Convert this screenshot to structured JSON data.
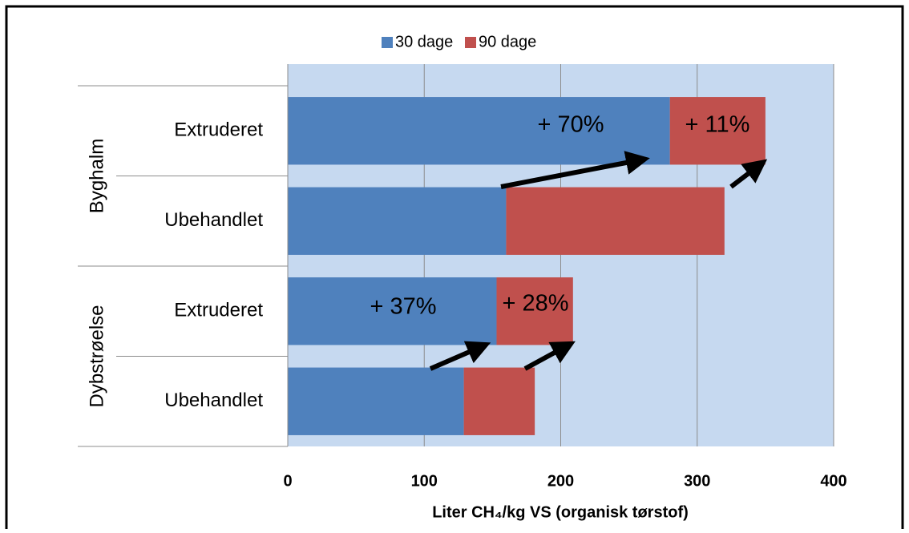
{
  "chart_data": {
    "type": "stacked_barh",
    "groups": [
      {
        "name": "Byghalm",
        "categories": [
          "Extruderet",
          "Ubehandlet"
        ]
      },
      {
        "name": "Dybstrøelse",
        "categories": [
          "Extruderet",
          "Ubehandlet"
        ]
      }
    ],
    "series": [
      {
        "name": "30 dage",
        "color": "#4f81bd",
        "values": [
          280,
          160,
          153,
          129
        ]
      },
      {
        "name": "90 dage",
        "color": "#c0504d",
        "values": [
          70,
          160,
          56,
          52
        ]
      }
    ],
    "xlim": [
      0,
      400
    ],
    "xticks": [
      0,
      100,
      200,
      300,
      400
    ],
    "xlabel": "Liter CH₄/kg VS (organisk tørstof)",
    "grid": true,
    "legend": "top",
    "annotations": [
      "+ 70%",
      "+ 11%",
      "+ 37%",
      "+ 28%"
    ]
  }
}
